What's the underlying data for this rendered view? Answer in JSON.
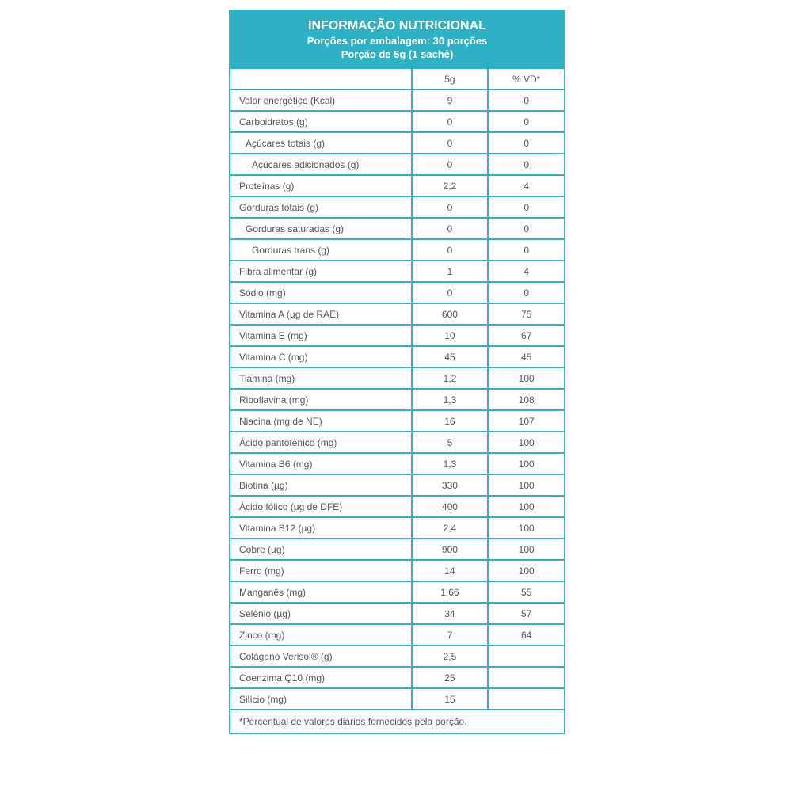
{
  "header": {
    "title": "INFORMAÇÃO NUTRICIONAL",
    "servings": "Porções por embalagem: 30 porções",
    "portion": "Porção de 5g (1 sachê)"
  },
  "columns": [
    "",
    "5g",
    "% VD*"
  ],
  "rows": [
    {
      "label": "Valor energético (Kcal)",
      "amount": "9",
      "vd": "0",
      "indent": 0
    },
    {
      "label": "Carboidratos (g)",
      "amount": "0",
      "vd": "0",
      "indent": 0
    },
    {
      "label": "Açúcares totais (g)",
      "amount": "0",
      "vd": "0",
      "indent": 1
    },
    {
      "label": "Açúcares adicionados (g)",
      "amount": "0",
      "vd": "0",
      "indent": 2
    },
    {
      "label": "Proteínas (g)",
      "amount": "2,2",
      "vd": "4",
      "indent": 0
    },
    {
      "label": "Gorduras totais (g)",
      "amount": "0",
      "vd": "0",
      "indent": 0
    },
    {
      "label": "Gorduras saturadas (g)",
      "amount": "0",
      "vd": "0",
      "indent": 1
    },
    {
      "label": "Gorduras trans (g)",
      "amount": "0",
      "vd": "0",
      "indent": 2
    },
    {
      "label": "Fibra alimentar (g)",
      "amount": "1",
      "vd": "4",
      "indent": 0
    },
    {
      "label": "Sódio (mg)",
      "amount": "0",
      "vd": "0",
      "indent": 0
    },
    {
      "label": "Vitamina A (µg de RAE)",
      "amount": "600",
      "vd": "75",
      "indent": 0
    },
    {
      "label": "Vitamina E (mg)",
      "amount": "10",
      "vd": "67",
      "indent": 0
    },
    {
      "label": "Vitamina C (mg)",
      "amount": "45",
      "vd": "45",
      "indent": 0
    },
    {
      "label": "Tiamina (mg)",
      "amount": "1,2",
      "vd": "100",
      "indent": 0
    },
    {
      "label": "Riboflavina (mg)",
      "amount": "1,3",
      "vd": "108",
      "indent": 0
    },
    {
      "label": "Niacina (mg de NE)",
      "amount": "16",
      "vd": "107",
      "indent": 0
    },
    {
      "label": "Ácido pantotênico (mg)",
      "amount": "5",
      "vd": "100",
      "indent": 0
    },
    {
      "label": "Vitamina B6 (mg)",
      "amount": "1,3",
      "vd": "100",
      "indent": 0
    },
    {
      "label": "Biotina (µg)",
      "amount": "330",
      "vd": "100",
      "indent": 0
    },
    {
      "label": "Ácido fólico (µg de DFE)",
      "amount": "400",
      "vd": "100",
      "indent": 0
    },
    {
      "label": "Vitamina B12 (µg)",
      "amount": "2,4",
      "vd": "100",
      "indent": 0
    },
    {
      "label": "Cobre (µg)",
      "amount": "900",
      "vd": "100",
      "indent": 0
    },
    {
      "label": "Ferro (mg)",
      "amount": "14",
      "vd": "100",
      "indent": 0
    },
    {
      "label": "Manganês (mg)",
      "amount": "1,66",
      "vd": "55",
      "indent": 0
    },
    {
      "label": "Selênio (µg)",
      "amount": "34",
      "vd": "57",
      "indent": 0
    },
    {
      "label": "Zinco (mg)",
      "amount": "7",
      "vd": "64",
      "indent": 0
    },
    {
      "label": "Colágeno Verisol® (g)",
      "amount": "2,5",
      "vd": "",
      "indent": 0
    },
    {
      "label": "Coenzima Q10 (mg)",
      "amount": "25",
      "vd": "",
      "indent": 0
    },
    {
      "label": "Silício (mg)",
      "amount": "15",
      "vd": "",
      "indent": 0
    }
  ],
  "footnote": "*Percentual de valores diários fornecidos pela porção.",
  "colors": {
    "accent": "#2fb1c5",
    "text": "#555555"
  }
}
